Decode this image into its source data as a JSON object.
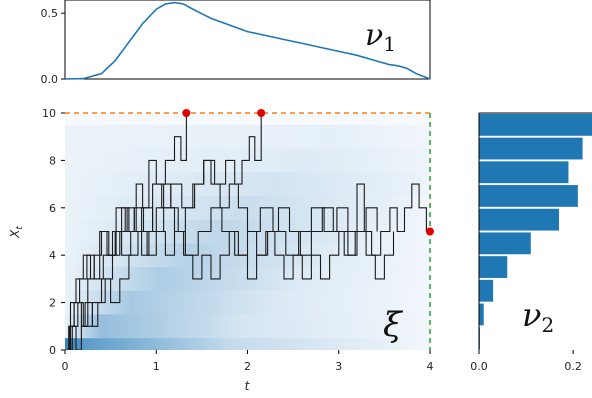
{
  "chart_data": [
    {
      "type": "area",
      "annotation": "ν1",
      "xlim": [
        0,
        4
      ],
      "ylim": [
        0,
        0.6
      ],
      "yticks": [
        "0.0",
        "0.5"
      ],
      "x": [
        0,
        0.2,
        0.4,
        0.55,
        0.7,
        0.85,
        1.0,
        1.1,
        1.2,
        1.3,
        1.4,
        1.6,
        1.8,
        2.0,
        2.2,
        2.4,
        2.6,
        2.8,
        3.0,
        3.2,
        3.4,
        3.55,
        3.65,
        3.75,
        3.85,
        4.0
      ],
      "y": [
        0,
        0.003,
        0.04,
        0.14,
        0.28,
        0.42,
        0.53,
        0.57,
        0.58,
        0.57,
        0.53,
        0.46,
        0.41,
        0.36,
        0.33,
        0.3,
        0.27,
        0.24,
        0.21,
        0.18,
        0.14,
        0.11,
        0.1,
        0.08,
        0.04,
        0.0
      ],
      "color": "#1f77b4"
    },
    {
      "type": "line",
      "annotation": "ξ",
      "xlabel": "t",
      "ylabel": "X_t",
      "xlim": [
        0,
        4
      ],
      "ylim": [
        0,
        10
      ],
      "xticks": [
        "0",
        "1",
        "2",
        "3",
        "4"
      ],
      "yticks": [
        "0",
        "2",
        "4",
        "6",
        "8",
        "10"
      ],
      "density_rows": [
        0.95,
        0.6,
        0.5,
        0.45,
        0.4,
        0.35,
        0.28,
        0.22,
        0.15,
        0.1
      ],
      "boundary_y": 10,
      "boundary_x": 4,
      "hit_points": [
        [
          1.33,
          10
        ],
        [
          2.15,
          10
        ],
        [
          4.0,
          5
        ]
      ],
      "paths": [
        [
          [
            0,
            0
          ],
          [
            0.05,
            1
          ],
          [
            0.1,
            2
          ],
          [
            0.18,
            1
          ],
          [
            0.25,
            3
          ],
          [
            0.32,
            4
          ],
          [
            0.4,
            5
          ],
          [
            0.48,
            4
          ],
          [
            0.55,
            5
          ],
          [
            0.62,
            6
          ],
          [
            0.7,
            5
          ],
          [
            0.78,
            7
          ],
          [
            0.85,
            6
          ],
          [
            0.92,
            8
          ],
          [
            1.0,
            7
          ],
          [
            1.1,
            8
          ],
          [
            1.2,
            9
          ],
          [
            1.27,
            8
          ],
          [
            1.33,
            10
          ]
        ],
        [
          [
            0,
            0
          ],
          [
            0.06,
            2
          ],
          [
            0.12,
            3
          ],
          [
            0.2,
            4
          ],
          [
            0.28,
            3
          ],
          [
            0.38,
            5
          ],
          [
            0.46,
            4
          ],
          [
            0.56,
            6
          ],
          [
            0.66,
            5
          ],
          [
            0.76,
            6
          ],
          [
            0.86,
            5
          ],
          [
            0.96,
            7
          ],
          [
            1.06,
            6
          ],
          [
            1.16,
            7
          ],
          [
            1.28,
            6
          ],
          [
            1.4,
            7
          ],
          [
            1.52,
            8
          ],
          [
            1.64,
            7
          ],
          [
            1.76,
            8
          ],
          [
            1.86,
            7
          ],
          [
            1.94,
            8
          ],
          [
            2.02,
            9
          ],
          [
            2.08,
            8
          ],
          [
            2.15,
            10
          ]
        ],
        [
          [
            0,
            0
          ],
          [
            0.04,
            1
          ],
          [
            0.1,
            2
          ],
          [
            0.16,
            3
          ],
          [
            0.24,
            4
          ],
          [
            0.32,
            3
          ],
          [
            0.42,
            4
          ],
          [
            0.52,
            5
          ],
          [
            0.62,
            4
          ],
          [
            0.72,
            5
          ],
          [
            0.84,
            6
          ],
          [
            0.96,
            5
          ],
          [
            1.08,
            6
          ],
          [
            1.2,
            5
          ],
          [
            1.32,
            4
          ],
          [
            1.46,
            5
          ],
          [
            1.6,
            6
          ],
          [
            1.72,
            5
          ],
          [
            1.86,
            4
          ],
          [
            2.0,
            5
          ],
          [
            2.14,
            6
          ],
          [
            2.28,
            5
          ],
          [
            2.42,
            4
          ],
          [
            2.56,
            5
          ],
          [
            2.7,
            6
          ],
          [
            2.84,
            5
          ],
          [
            2.98,
            6
          ],
          [
            3.1,
            5
          ],
          [
            3.2,
            7
          ],
          [
            3.28,
            5
          ],
          [
            3.36,
            4
          ],
          [
            3.46,
            5
          ],
          [
            3.56,
            6
          ],
          [
            3.64,
            5
          ],
          [
            3.72,
            6
          ],
          [
            3.8,
            7
          ],
          [
            3.88,
            6
          ],
          [
            3.96,
            5
          ],
          [
            4.0,
            5
          ]
        ],
        [
          [
            0,
            0
          ],
          [
            0.08,
            1
          ],
          [
            0.14,
            2
          ],
          [
            0.2,
            1
          ],
          [
            0.3,
            2
          ],
          [
            0.4,
            3
          ],
          [
            0.5,
            2
          ],
          [
            0.6,
            3
          ],
          [
            0.7,
            4
          ],
          [
            0.8,
            5
          ],
          [
            0.9,
            4
          ],
          [
            1.0,
            5
          ],
          [
            1.1,
            4
          ],
          [
            1.2,
            5
          ],
          [
            1.3,
            4
          ],
          [
            1.4,
            3
          ],
          [
            1.5,
            4
          ],
          [
            1.6,
            3
          ],
          [
            1.7,
            4
          ],
          [
            1.8,
            5
          ],
          [
            1.9,
            4
          ],
          [
            2.0,
            3
          ],
          [
            2.1,
            4
          ],
          [
            2.2,
            5
          ],
          [
            2.3,
            4
          ],
          [
            2.4,
            3
          ],
          [
            2.5,
            4
          ],
          [
            2.6,
            3
          ],
          [
            2.7,
            4
          ],
          [
            2.8,
            3
          ],
          [
            2.9,
            4
          ],
          [
            3.0,
            5
          ],
          [
            3.1,
            4
          ],
          [
            3.2,
            5
          ],
          [
            3.3,
            4
          ],
          [
            3.4,
            3
          ],
          [
            3.5,
            4
          ],
          [
            3.6,
            5
          ]
        ],
        [
          [
            0,
            0
          ],
          [
            0.06,
            1
          ],
          [
            0.12,
            0
          ],
          [
            0.18,
            1
          ],
          [
            0.22,
            2
          ],
          [
            0.3,
            1
          ],
          [
            0.36,
            2
          ],
          [
            0.44,
            3
          ],
          [
            0.52,
            4
          ],
          [
            0.6,
            5
          ],
          [
            0.68,
            6
          ],
          [
            0.76,
            5
          ],
          [
            0.84,
            4
          ],
          [
            0.92,
            5
          ],
          [
            1.0,
            6
          ],
          [
            1.08,
            7
          ],
          [
            1.16,
            6
          ],
          [
            1.24,
            5
          ],
          [
            1.32,
            6
          ],
          [
            1.42,
            7
          ],
          [
            1.52,
            8
          ],
          [
            1.6,
            7
          ],
          [
            1.7,
            6
          ],
          [
            1.8,
            7
          ],
          [
            1.9,
            6
          ],
          [
            2.0,
            5
          ],
          [
            2.1,
            4
          ],
          [
            2.22,
            5
          ],
          [
            2.34,
            6
          ],
          [
            2.46,
            5
          ],
          [
            2.58,
            4
          ],
          [
            2.7,
            5
          ],
          [
            2.82,
            6
          ],
          [
            2.94,
            5
          ],
          [
            3.06,
            4
          ],
          [
            3.18,
            5
          ],
          [
            3.3,
            6
          ],
          [
            3.42,
            5
          ]
        ]
      ],
      "colors": {
        "path": "#1a1a1a",
        "top_line": "#ff7f0e",
        "right_line": "#2ca02c",
        "points": "#e00000",
        "density": "#1f77b4"
      }
    },
    {
      "type": "bar",
      "orientation": "horizontal",
      "annotation": "ν2",
      "xlim": [
        0,
        0.24
      ],
      "xticks": [
        "0.0",
        "0.2"
      ],
      "categories": [
        0,
        1,
        2,
        3,
        4,
        5,
        6,
        7,
        8,
        9
      ],
      "values": [
        0.002,
        0.01,
        0.03,
        0.06,
        0.11,
        0.17,
        0.21,
        0.19,
        0.22,
        0.24
      ],
      "color": "#1f77b4"
    }
  ]
}
